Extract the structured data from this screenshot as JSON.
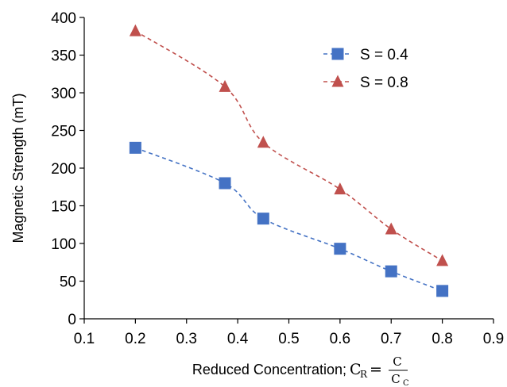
{
  "chart_data": {
    "type": "line",
    "title": "",
    "xlabel": "Reduced Concentration; ",
    "xlabel_math": {
      "lhs": "C",
      "lhs_sub": "R",
      "eq": "=",
      "num": "C",
      "den": "C",
      "den_sub": "C"
    },
    "ylabel": "Magnetic Strength (mT)",
    "xlim": [
      0.1,
      0.9
    ],
    "ylim": [
      0,
      400
    ],
    "xticks": [
      "0.1",
      "0.2",
      "0.3",
      "0.4",
      "0.5",
      "0.6",
      "0.7",
      "0.8",
      "0.9"
    ],
    "yticks": [
      "0",
      "50",
      "100",
      "150",
      "200",
      "250",
      "300",
      "350",
      "400"
    ],
    "grid": false,
    "legend_position": "top-right",
    "series": [
      {
        "name": "S = 0.4",
        "marker": "square",
        "line_style": "dashed",
        "color": "#4472C4",
        "x": [
          0.2,
          0.375,
          0.45,
          0.6,
          0.7,
          0.8
        ],
        "y": [
          227,
          180,
          133,
          93,
          63,
          37
        ]
      },
      {
        "name": "S = 0.8",
        "marker": "triangle",
        "line_style": "dashed",
        "color": "#C0504D",
        "x": [
          0.2,
          0.375,
          0.45,
          0.6,
          0.7,
          0.8
        ],
        "y": [
          382,
          308,
          234,
          172,
          119,
          77
        ]
      }
    ]
  }
}
